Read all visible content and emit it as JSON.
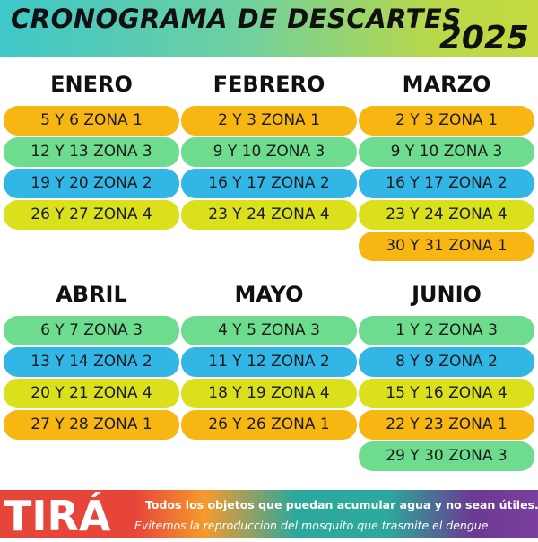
{
  "header": {
    "title": "CRONOGRAMA DE DESCARTES",
    "year": "2025"
  },
  "months": [
    {
      "name": "ENERO",
      "entries": [
        {
          "label": "5 Y 6  ZONA 1",
          "zone": 1
        },
        {
          "label": "12 Y 13  ZONA 3",
          "zone": 3
        },
        {
          "label": "19 Y 20  ZONA 2",
          "zone": 2
        },
        {
          "label": "26 Y 27  ZONA 4",
          "zone": 4
        }
      ]
    },
    {
      "name": "FEBRERO",
      "entries": [
        {
          "label": "2 Y 3  ZONA 1",
          "zone": 1
        },
        {
          "label": "9 Y 10  ZONA 3",
          "zone": 3
        },
        {
          "label": "16 Y 17  ZONA 2",
          "zone": 2
        },
        {
          "label": "23 Y 24  ZONA 4",
          "zone": 4
        }
      ]
    },
    {
      "name": "MARZO",
      "entries": [
        {
          "label": "2 Y 3  ZONA 1",
          "zone": 1
        },
        {
          "label": "9 Y 10  ZONA 3",
          "zone": 3
        },
        {
          "label": "16 Y 17  ZONA 2",
          "zone": 2
        },
        {
          "label": "23 Y 24  ZONA 4",
          "zone": 4
        },
        {
          "label": "30 Y 31  ZONA 1",
          "zone": 1
        }
      ]
    },
    {
      "name": "ABRIL",
      "entries": [
        {
          "label": "6 Y 7  ZONA 3",
          "zone": 3
        },
        {
          "label": "13 Y 14  ZONA 2",
          "zone": 2
        },
        {
          "label": "20 Y 21  ZONA 4",
          "zone": 4
        },
        {
          "label": "27 Y 28  ZONA 1",
          "zone": 1
        }
      ]
    },
    {
      "name": "MAYO",
      "entries": [
        {
          "label": "4 Y 5  ZONA 3",
          "zone": 3
        },
        {
          "label": "11 Y 12  ZONA 2",
          "zone": 2
        },
        {
          "label": "18 Y 19  ZONA 4",
          "zone": 4
        },
        {
          "label": "26 Y 26  ZONA 1",
          "zone": 1
        }
      ]
    },
    {
      "name": "JUNIO",
      "entries": [
        {
          "label": "1 Y 2  ZONA 3",
          "zone": 3
        },
        {
          "label": "8 Y 9  ZONA 2",
          "zone": 2
        },
        {
          "label": "15 Y 16  ZONA 4",
          "zone": 4
        },
        {
          "label": "22 Y 23  ZONA 1",
          "zone": 1
        },
        {
          "label": "29 Y 30  ZONA 3",
          "zone": 3
        }
      ]
    }
  ],
  "zone_colors": {
    "1": "#f7b611",
    "2": "#31b6e6",
    "3": "#6edc8e",
    "4": "#dbe01d"
  },
  "footer": {
    "brand": "TIRÁ",
    "line1": "Todos los objetos que puedan acumular agua y no sean útiles.",
    "line2": "Evitemos la reproduccion del mosquito que trasmite el dengue"
  }
}
